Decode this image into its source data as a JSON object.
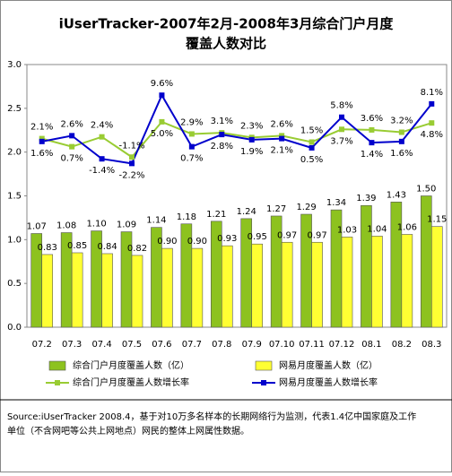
{
  "chart_data": {
    "type": "bar-line",
    "title": [
      "iUserTracker-2007年2月-2008年3月综合门户月度",
      "覆盖人数对比"
    ],
    "categories": [
      "07.2",
      "07.3",
      "07.4",
      "07.5",
      "07.6",
      "07.7",
      "07.8",
      "07.9",
      "07.10",
      "07.11",
      "07.12",
      "08.1",
      "08.2",
      "08.3"
    ],
    "ylim": [
      0,
      3.0
    ],
    "yticks": [
      {
        "value": 0,
        "label": "0.0"
      },
      {
        "value": 0.5,
        "label": "0.5"
      },
      {
        "value": 1,
        "label": "1.0"
      },
      {
        "value": 1.5,
        "label": "1.5"
      },
      {
        "value": 2,
        "label": "2.0"
      },
      {
        "value": 2.5,
        "label": "2.5"
      },
      {
        "value": 3,
        "label": "3.0"
      }
    ],
    "y2lim": [
      -30.5,
      14.9
    ],
    "series": [
      {
        "name": "综合门户月度覆盖人数（亿）",
        "kind": "bar",
        "color": "#8dc21f",
        "values": [
          1.07,
          1.08,
          1.1,
          1.09,
          1.14,
          1.18,
          1.21,
          1.24,
          1.27,
          1.29,
          1.34,
          1.39,
          1.43,
          1.5
        ],
        "value_labels": [
          "1.07",
          "1.08",
          "1.10",
          "1.09",
          "1.14",
          "1.18",
          "1.21",
          "1.24",
          "1.27",
          "1.29",
          "1.34",
          "1.39",
          "1.43",
          "1.50"
        ]
      },
      {
        "name": "网易月度覆盖人数（亿）",
        "kind": "bar",
        "color": "#ffff33",
        "values": [
          0.83,
          0.85,
          0.84,
          0.82,
          0.9,
          0.9,
          0.93,
          0.95,
          0.97,
          0.97,
          1.03,
          1.04,
          1.06,
          1.15
        ],
        "value_labels": [
          "0.83",
          "0.85",
          "0.84",
          "0.82",
          "0.90",
          "0.90",
          "0.93",
          "0.95",
          "0.97",
          "0.97",
          "1.03",
          "1.04",
          "1.06",
          "1.15"
        ]
      },
      {
        "name": "综合门户月度覆盖人数增长率",
        "kind": "line",
        "axis": "y2",
        "color": "#99cc33",
        "values": [
          2.1,
          0.7,
          2.4,
          -1.1,
          5.0,
          2.9,
          3.1,
          2.3,
          2.6,
          1.5,
          3.7,
          3.6,
          3.2,
          4.8
        ],
        "value_labels": [
          "2.1%",
          "0.7%",
          "2.4%",
          "-1.1%",
          "5.0%",
          "2.9%",
          "3.1%",
          "2.3%",
          "2.6%",
          "1.5%",
          "3.7%",
          "3.6%",
          "3.2%",
          "4.8%"
        ]
      },
      {
        "name": "网易月度覆盖人数增长率",
        "kind": "line",
        "axis": "y2",
        "color": "#0000cc",
        "values": [
          1.6,
          2.6,
          -1.4,
          -2.2,
          9.6,
          0.7,
          2.8,
          1.9,
          2.1,
          0.5,
          5.8,
          1.4,
          1.6,
          8.1
        ],
        "value_labels": [
          "1.6%",
          "2.6%",
          "-1.4%",
          "-2.2%",
          "9.6%",
          "0.7%",
          "2.8%",
          "1.9%",
          "2.1%",
          "0.5%",
          "5.8%",
          "1.4%",
          "1.6%",
          "8.1%"
        ]
      }
    ],
    "source": [
      "Source:iUserTracker 2008.4，基于对10万多名样本的长期网络行为监测，代表1.4亿中国家庭及工作",
      "单位（不含网吧等公共上网地点）网民的整体上网属性数据。"
    ]
  }
}
